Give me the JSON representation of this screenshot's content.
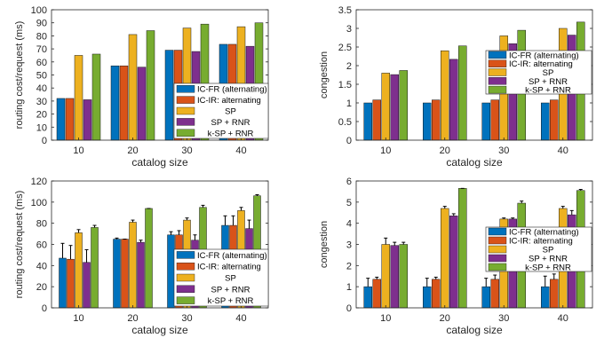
{
  "legend_entries": [
    "IC-FR (alternating)",
    "IC-IR: alternating",
    "SP",
    "SP + RNR",
    "k-SP + RNR"
  ],
  "series_colors": [
    "#0072BD",
    "#D95319",
    "#EDB120",
    "#7E2F8E",
    "#77AC30"
  ],
  "chart_data": [
    {
      "type": "bar",
      "xlabel": "catalog size",
      "ylabel": "routing cost/request (ms)",
      "categories": [
        "10",
        "20",
        "30",
        "40"
      ],
      "ylim": [
        0,
        100
      ],
      "yticks": [
        0,
        10,
        20,
        30,
        40,
        50,
        60,
        70,
        80,
        90,
        100
      ],
      "legend_position": "lower-right",
      "series": [
        {
          "name": "IC-FR (alternating)",
          "values": [
            32,
            57,
            69,
            73.5
          ]
        },
        {
          "name": "IC-IR: alternating",
          "values": [
            32,
            57,
            69,
            73.5
          ]
        },
        {
          "name": "SP",
          "values": [
            65,
            81,
            86,
            87
          ]
        },
        {
          "name": "SP + RNR",
          "values": [
            31,
            56,
            68,
            72
          ]
        },
        {
          "name": "k-SP + RNR",
          "values": [
            66,
            84,
            89,
            90
          ]
        }
      ]
    },
    {
      "type": "bar",
      "xlabel": "catalog size",
      "ylabel": "congestion",
      "categories": [
        "10",
        "20",
        "30",
        "40"
      ],
      "ylim": [
        0,
        3.5
      ],
      "yticks": [
        0,
        0.5,
        1,
        1.5,
        2,
        2.5,
        3,
        3.5
      ],
      "legend_position": "upper-right",
      "series": [
        {
          "name": "IC-FR (alternating)",
          "values": [
            1,
            1,
            1,
            1
          ]
        },
        {
          "name": "IC-IR: alternating",
          "values": [
            1.08,
            1.08,
            1.08,
            1.08
          ]
        },
        {
          "name": "SP",
          "values": [
            1.8,
            2.4,
            2.8,
            3.0
          ]
        },
        {
          "name": "SP + RNR",
          "values": [
            1.76,
            2.17,
            2.59,
            2.82
          ]
        },
        {
          "name": "k-SP + RNR",
          "values": [
            1.87,
            2.53,
            2.95,
            3.17
          ]
        }
      ]
    },
    {
      "type": "bar",
      "xlabel": "catalog size",
      "ylabel": "routing cost/request (ms)",
      "categories": [
        "10",
        "20",
        "30",
        "40"
      ],
      "ylim": [
        0,
        120
      ],
      "yticks": [
        0,
        20,
        40,
        60,
        80,
        100,
        120
      ],
      "legend_position": "lower-right",
      "error_bars": true,
      "series": [
        {
          "name": "IC-FR (alternating)",
          "values": [
            47,
            65,
            69,
            78
          ],
          "upper": [
            61,
            66,
            72,
            87
          ]
        },
        {
          "name": "IC-IR: alternating",
          "values": [
            46,
            65,
            69,
            78
          ],
          "upper": [
            59,
            65,
            73,
            87
          ]
        },
        {
          "name": "SP",
          "values": [
            71,
            81,
            83,
            92
          ],
          "upper": [
            74,
            83,
            85,
            95
          ]
        },
        {
          "name": "SP + RNR",
          "values": [
            43,
            62,
            64,
            75
          ],
          "upper": [
            55,
            64,
            69,
            83
          ]
        },
        {
          "name": "k-SP + RNR",
          "values": [
            76,
            94,
            95,
            106
          ],
          "upper": [
            78,
            94,
            97,
            107
          ]
        }
      ]
    },
    {
      "type": "bar",
      "xlabel": "catalog size",
      "ylabel": "congestion",
      "categories": [
        "10",
        "20",
        "30",
        "40"
      ],
      "ylim": [
        0,
        6
      ],
      "yticks": [
        0,
        1,
        2,
        3,
        4,
        5,
        6
      ],
      "legend_position": "upper-left",
      "error_bars": true,
      "series": [
        {
          "name": "IC-FR (alternating)",
          "values": [
            1,
            1,
            1,
            1
          ],
          "upper": [
            1.4,
            1.4,
            1.4,
            1.5
          ]
        },
        {
          "name": "IC-IR: alternating",
          "values": [
            1.35,
            1.35,
            1.35,
            1.35
          ],
          "upper": [
            1.45,
            1.45,
            1.55,
            1.6
          ]
        },
        {
          "name": "SP",
          "values": [
            3.0,
            4.7,
            4.2,
            4.7
          ],
          "upper": [
            3.3,
            4.8,
            4.25,
            4.8
          ]
        },
        {
          "name": "SP + RNR",
          "values": [
            2.95,
            4.35,
            4.2,
            4.4
          ],
          "upper": [
            3.1,
            4.45,
            4.25,
            4.6
          ]
        },
        {
          "name": "k-SP + RNR",
          "values": [
            3.0,
            5.65,
            4.95,
            5.55
          ],
          "upper": [
            3.1,
            5.65,
            5.05,
            5.6
          ]
        }
      ]
    }
  ]
}
